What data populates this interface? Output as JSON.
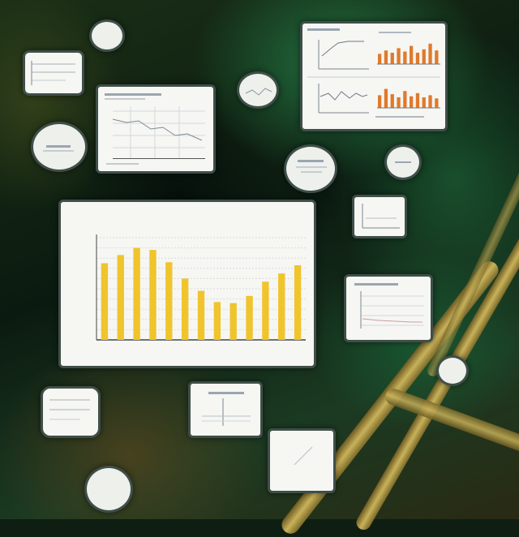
{
  "main_chart": {
    "title": "",
    "ylabel": "",
    "xlabel": "",
    "values": [
      0.75,
      0.83,
      0.9,
      0.88,
      0.76,
      0.6,
      0.48,
      0.37,
      0.36,
      0.43,
      0.57,
      0.65,
      0.73
    ],
    "ylim": [
      0,
      1
    ],
    "bar_color": "#f0c42c",
    "grid": true
  },
  "top_right_chart": {
    "orange_values": [
      0.45,
      0.6,
      0.5,
      0.7,
      0.55,
      0.8,
      0.5,
      0.65,
      0.9,
      0.6
    ],
    "bar_color": "#e07a2c"
  },
  "colors": {
    "panel_border": "#3f4f49",
    "panel_bg": "#f6f6f3"
  }
}
